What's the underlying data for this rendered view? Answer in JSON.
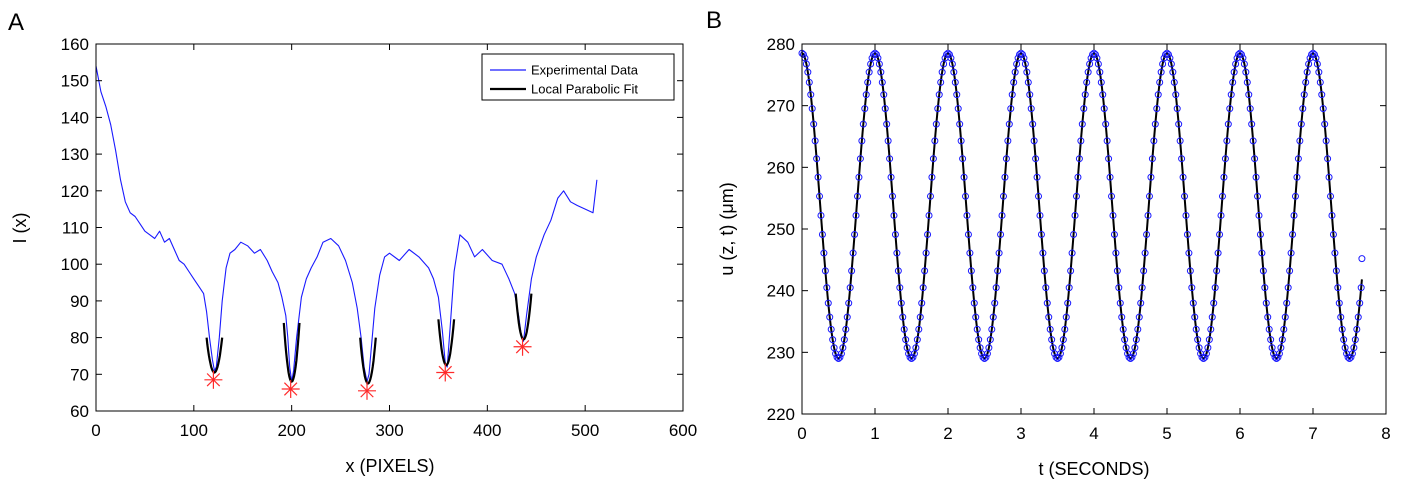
{
  "panels": [
    {
      "letter": "A"
    },
    {
      "letter": "B"
    }
  ],
  "chart_data": [
    {
      "type": "line",
      "xlabel": "x (PIXELS)",
      "ylabel": "I (x)",
      "xlim": [
        0,
        600
      ],
      "ylim": [
        60,
        160
      ],
      "xticks": [
        0,
        100,
        200,
        300,
        400,
        500,
        600
      ],
      "yticks": [
        60,
        70,
        80,
        90,
        100,
        110,
        120,
        130,
        140,
        150,
        160
      ],
      "grid": false,
      "legend_position": "top-right",
      "colors": {
        "data": "#1a1aff",
        "fit": "#000000",
        "minima": "#ff2a2a"
      },
      "series": [
        {
          "name": "Experimental Data",
          "x": [
            0,
            5,
            10,
            15,
            20,
            25,
            30,
            35,
            40,
            45,
            50,
            55,
            60,
            65,
            70,
            75,
            80,
            85,
            90,
            95,
            100,
            105,
            110,
            113,
            116,
            119,
            121,
            123,
            126,
            129,
            133,
            137,
            142,
            148,
            155,
            162,
            168,
            175,
            180,
            186,
            190,
            194,
            196,
            198,
            200,
            202,
            205,
            210,
            215,
            220,
            226,
            232,
            240,
            248,
            255,
            262,
            267,
            271,
            274,
            277,
            279,
            282,
            285,
            290,
            295,
            300,
            310,
            320,
            330,
            340,
            345,
            350,
            354,
            357,
            359,
            362,
            366,
            372,
            380,
            387,
            395,
            405,
            415,
            422,
            428,
            432,
            435,
            437,
            440,
            445,
            450,
            458,
            465,
            472,
            478,
            485,
            492,
            500,
            508,
            512
          ],
          "y": [
            154,
            147,
            143,
            138,
            131,
            123,
            117,
            114,
            113,
            111,
            109,
            108,
            107,
            109,
            106,
            107,
            104,
            101,
            100,
            98,
            96,
            94,
            92,
            87,
            80,
            74,
            71,
            72,
            80,
            90,
            99,
            103,
            104,
            106,
            105,
            103,
            104,
            101,
            98,
            95,
            91,
            86,
            80,
            72,
            68,
            71,
            80,
            91,
            96,
            99,
            102,
            106,
            107,
            105,
            101,
            95,
            88,
            80,
            72,
            68,
            70,
            79,
            88,
            97,
            102,
            103,
            101,
            104,
            102,
            99,
            96,
            91,
            82,
            73,
            72,
            83,
            98,
            108,
            106,
            102,
            104,
            101,
            100,
            96,
            92,
            86,
            80,
            79,
            86,
            96,
            102,
            108,
            112,
            118,
            120,
            117,
            116,
            115,
            114,
            123
          ]
        },
        {
          "name": "Local Parabolic Fit",
          "segments": [
            {
              "center": 121,
              "half_width": 8,
              "vertex_y": 70.5,
              "end_y": 80
            },
            {
              "center": 200,
              "half_width": 8,
              "vertex_y": 68.0,
              "end_y": 84
            },
            {
              "center": 278,
              "half_width": 8,
              "vertex_y": 67.5,
              "end_y": 80
            },
            {
              "center": 358,
              "half_width": 8,
              "vertex_y": 72.5,
              "end_y": 85
            },
            {
              "center": 437,
              "half_width": 8,
              "vertex_y": 79.5,
              "end_y": 92
            }
          ]
        }
      ],
      "minima": [
        {
          "x": 120,
          "y": 68.5
        },
        {
          "x": 199,
          "y": 66.0
        },
        {
          "x": 277,
          "y": 65.5
        },
        {
          "x": 357,
          "y": 70.5
        },
        {
          "x": 436,
          "y": 77.5
        }
      ]
    },
    {
      "type": "line",
      "xlabel": "t (SECONDS)",
      "ylabel": "u (z, t) (μm)",
      "xlim": [
        0,
        8
      ],
      "ylim": [
        220,
        280
      ],
      "xticks": [
        0,
        1,
        2,
        3,
        4,
        5,
        6,
        7,
        8
      ],
      "yticks": [
        220,
        230,
        240,
        250,
        260,
        270,
        280
      ],
      "grid": false,
      "colors": {
        "fit": "#000000",
        "markers": "#1a1aff"
      },
      "series": [
        {
          "kind": "sinusoid",
          "mean": 253.75,
          "amplitude": 24.75,
          "period": 1.0,
          "phase": 0,
          "t_start": 0,
          "t_end": 7.67,
          "sample_step": 0.02,
          "last_point": {
            "t": 7.67,
            "u": 245.2
          }
        }
      ]
    }
  ]
}
